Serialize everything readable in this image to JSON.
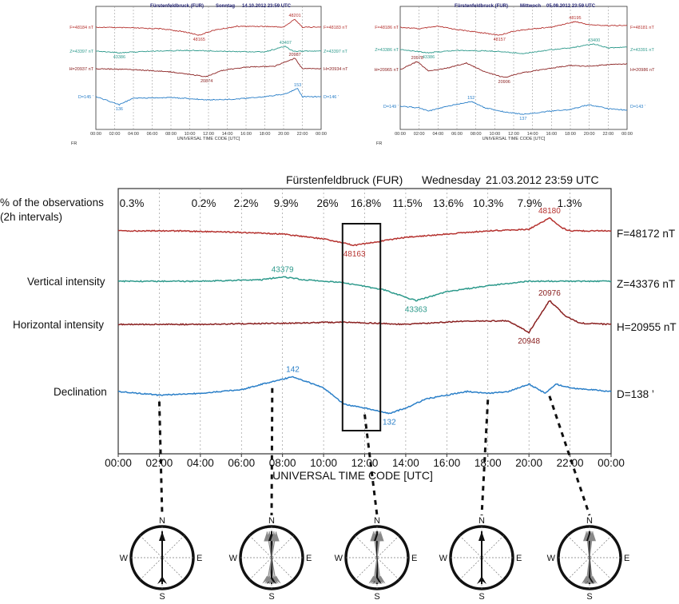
{
  "colors": {
    "F": "#b5322f",
    "Z": "#2e9a8c",
    "H": "#8a2121",
    "D": "#2a7fc8",
    "grid": "#8a8a8a",
    "axis": "#333333"
  },
  "chart_data": [
    {
      "type": "line",
      "title": "Fürstenfeldbruck (FUR)",
      "day": "Sonntag",
      "datetime": "14.10.2012  23:59 UTC",
      "xlabel": "UNIVERSAL TIME CODE [UTC]",
      "footer": "FR",
      "x_ticks": [
        "00:00",
        "02:00",
        "04:00",
        "06:00",
        "08:00",
        "10:00",
        "12:00",
        "14:00",
        "16:00",
        "18:00",
        "20:00",
        "22:00",
        "00:00"
      ],
      "series": [
        {
          "key": "F",
          "left_label": "F=48184 nT",
          "right_label": "F=48183 nT",
          "annotations": [
            {
              "text": "48201",
              "x": 21.2
            },
            {
              "text": "48165",
              "x": 11.0
            }
          ]
        },
        {
          "key": "Z",
          "left_label": "Z=43397 nT",
          "right_label": "Z=43397 nT",
          "annotations": [
            {
              "text": "43386",
              "x": 2.5
            },
            {
              "text": "43407",
              "x": 20.2
            }
          ]
        },
        {
          "key": "H",
          "left_label": "H=20937 nT",
          "right_label": "H=20934 nT",
          "annotations": [
            {
              "text": "20987",
              "x": 21.2
            },
            {
              "text": "20874",
              "x": 11.8
            }
          ]
        },
        {
          "key": "D",
          "left_label": "D=145 ’",
          "right_label": "D=146 ’",
          "annotations": [
            {
              "text": "153",
              "x": 21.5
            },
            {
              "text": "136",
              "x": 2.5
            }
          ]
        }
      ],
      "profiles": {
        "F": [
          [
            0,
            0
          ],
          [
            4,
            0.1
          ],
          [
            7,
            0.2
          ],
          [
            9.5,
            0.6
          ],
          [
            11,
            1
          ],
          [
            12.5,
            0.4
          ],
          [
            15,
            -0.1
          ],
          [
            18,
            -0.1
          ],
          [
            20,
            0
          ],
          [
            21.2,
            -1
          ],
          [
            22,
            0
          ],
          [
            24,
            0
          ]
        ],
        "Z": [
          [
            0,
            0
          ],
          [
            2.5,
            0.2
          ],
          [
            6,
            0
          ],
          [
            10,
            -0.1
          ],
          [
            13,
            0
          ],
          [
            18,
            0.1
          ],
          [
            20.2,
            -0.6
          ],
          [
            21,
            0
          ],
          [
            24,
            0
          ]
        ],
        "H": [
          [
            0,
            0
          ],
          [
            4,
            0.1
          ],
          [
            8,
            0.4
          ],
          [
            11.8,
            1
          ],
          [
            13.5,
            0.2
          ],
          [
            16,
            -0.2
          ],
          [
            19,
            -0.3
          ],
          [
            21.2,
            -1.3
          ],
          [
            22,
            0
          ],
          [
            24,
            0
          ]
        ],
        "D": [
          [
            0,
            0
          ],
          [
            1,
            0.4
          ],
          [
            2.5,
            1
          ],
          [
            4,
            0.2
          ],
          [
            8,
            0.1
          ],
          [
            12,
            0.4
          ],
          [
            15,
            0.3
          ],
          [
            18,
            0
          ],
          [
            20,
            -0.3
          ],
          [
            21.5,
            -1
          ],
          [
            22,
            0
          ],
          [
            24,
            0
          ]
        ]
      }
    },
    {
      "type": "line",
      "title": "Fürstenfeldbruck  (FUR)",
      "day": "Mittwoch",
      "datetime": "05.09.2012  23:59 UTC",
      "xlabel": "UNIVERSAL TIME CODE [UTC]",
      "footer": "FR",
      "x_ticks": [
        "00:00",
        "02:00",
        "04:00",
        "06:00",
        "08:00",
        "10:00",
        "12:00",
        "14:00",
        "16:00",
        "18:00",
        "20:00",
        "22:00",
        "00:00"
      ],
      "series": [
        {
          "key": "F",
          "left_label": "F=48186 nT",
          "right_label": "F=48181 nT",
          "annotations": [
            {
              "text": "48195",
              "x": 18.5
            },
            {
              "text": "48157",
              "x": 10.5
            }
          ]
        },
        {
          "key": "Z",
          "left_label": "Z=43386 nT",
          "right_label": "Z=43391 nT",
          "annotations": [
            {
              "text": "43386",
              "x": 3.0
            },
            {
              "text": "43400",
              "x": 20.5
            }
          ]
        },
        {
          "key": "H",
          "left_label": "H=20965 nT",
          "right_label": "H=20986 nT",
          "annotations": [
            {
              "text": "20978",
              "x": 1.8
            },
            {
              "text": "20906",
              "x": 11.0
            }
          ]
        },
        {
          "key": "D",
          "left_label": "D=149 ’",
          "right_label": "D=143 ’",
          "annotations": [
            {
              "text": "152",
              "x": 7.5
            },
            {
              "text": "137",
              "x": 13.0
            }
          ]
        }
      ],
      "profiles": {
        "F": [
          [
            0,
            0
          ],
          [
            2,
            0.2
          ],
          [
            4,
            -0.1
          ],
          [
            6,
            0.3
          ],
          [
            8,
            0.6
          ],
          [
            10.5,
            1
          ],
          [
            12,
            0.5
          ],
          [
            14,
            0.2
          ],
          [
            16,
            0
          ],
          [
            18.5,
            -0.7
          ],
          [
            20,
            -0.3
          ],
          [
            22,
            -0.2
          ],
          [
            24,
            -0.2
          ]
        ],
        "Z": [
          [
            0,
            0
          ],
          [
            3,
            0.4
          ],
          [
            6,
            0.1
          ],
          [
            10,
            0.2
          ],
          [
            13,
            0.5
          ],
          [
            16,
            0
          ],
          [
            18,
            -0.2
          ],
          [
            20.5,
            -0.7
          ],
          [
            22,
            -0.2
          ],
          [
            24,
            -0.3
          ]
        ],
        "H": [
          [
            0,
            0
          ],
          [
            1.8,
            -1
          ],
          [
            3,
            0.2
          ],
          [
            5,
            -0.2
          ],
          [
            7,
            -0.8
          ],
          [
            9,
            0.3
          ],
          [
            11,
            1
          ],
          [
            13,
            0.4
          ],
          [
            15,
            0
          ],
          [
            18,
            -0.5
          ],
          [
            20,
            -0.4
          ],
          [
            22,
            -0.6
          ],
          [
            24,
            -0.7
          ]
        ],
        "D": [
          [
            0,
            0
          ],
          [
            2,
            0.2
          ],
          [
            3,
            0.6
          ],
          [
            5,
            0
          ],
          [
            7.5,
            -0.6
          ],
          [
            9,
            0.2
          ],
          [
            11,
            0.7
          ],
          [
            13,
            1
          ],
          [
            16,
            0.6
          ],
          [
            18,
            0.4
          ],
          [
            20,
            -0.2
          ],
          [
            22,
            0.3
          ],
          [
            24,
            0.5
          ]
        ]
      }
    },
    {
      "type": "line",
      "title": "Fürstenfeldbruck (FUR)",
      "day": "Wednesday",
      "datetime": "21.03.2012   23:59 UTC",
      "xlabel": "UNIVERSAL TIME CODE [UTC]",
      "x_range": [
        0,
        24
      ],
      "x_ticks": [
        "00:00",
        "02:00",
        "04:00",
        "06:00",
        "08:00",
        "10:00",
        "12:00",
        "14:00",
        "16:00",
        "18:00",
        "20:00",
        "22:00",
        "00:00"
      ],
      "observations_label": [
        "% of the observations",
        "(2h intervals)"
      ],
      "observations": [
        "0.3%",
        "0.2%",
        "2.2%",
        "9.9%",
        "26%",
        "16.8%",
        "11.5%",
        "13.6%",
        "10.3%",
        "7.9%",
        "1.3%"
      ],
      "highlight_window_utc": [
        11,
        13
      ],
      "series": [
        {
          "key": "F",
          "name": "",
          "right_label": "F=48172 nT",
          "min": 48163,
          "max": 48180,
          "annotations": [
            {
              "text": "48180",
              "x": 21.0,
              "pos": "above"
            },
            {
              "text": "48163",
              "x": 11.5,
              "pos": "below"
            }
          ]
        },
        {
          "key": "Z",
          "name": "Vertical intensity",
          "right_label": "Z=43376 nT",
          "min": 43363,
          "max": 43379,
          "annotations": [
            {
              "text": "43379",
              "x": 8.0,
              "pos": "above"
            },
            {
              "text": "43363",
              "x": 14.5,
              "pos": "below"
            }
          ]
        },
        {
          "key": "H",
          "name": "Horizontal intensity",
          "right_label": "H=20955 nT",
          "min": 20948,
          "max": 20976,
          "annotations": [
            {
              "text": "20976",
              "x": 21.0,
              "pos": "above"
            },
            {
              "text": "20948",
              "x": 20.0,
              "pos": "below"
            }
          ]
        },
        {
          "key": "D",
          "name": "Declination",
          "right_label": "D=138 ’",
          "min": 132,
          "max": 142,
          "annotations": [
            {
              "text": "142",
              "x": 8.5,
              "pos": "above"
            },
            {
              "text": "132",
              "x": 13.2,
              "pos": "below"
            }
          ]
        }
      ],
      "profiles": {
        "F": [
          [
            0,
            48172
          ],
          [
            3,
            48172
          ],
          [
            6,
            48171
          ],
          [
            8,
            48170
          ],
          [
            10,
            48167
          ],
          [
            11.5,
            48163
          ],
          [
            12.5,
            48165
          ],
          [
            14,
            48168
          ],
          [
            16,
            48170
          ],
          [
            18,
            48172
          ],
          [
            20,
            48173
          ],
          [
            21,
            48180
          ],
          [
            21.6,
            48174
          ],
          [
            22,
            48172
          ],
          [
            24,
            48172
          ]
        ],
        "Z": [
          [
            0,
            43376
          ],
          [
            4,
            43376
          ],
          [
            7,
            43377
          ],
          [
            8,
            43379
          ],
          [
            9,
            43377
          ],
          [
            11,
            43375
          ],
          [
            13,
            43370
          ],
          [
            14.5,
            43363
          ],
          [
            16,
            43369
          ],
          [
            18,
            43373
          ],
          [
            20,
            43376
          ],
          [
            22,
            43376
          ],
          [
            24,
            43376
          ]
        ],
        "H": [
          [
            0,
            20955
          ],
          [
            4,
            20955
          ],
          [
            8,
            20956
          ],
          [
            11,
            20957
          ],
          [
            14,
            20955
          ],
          [
            17,
            20958
          ],
          [
            19,
            20958
          ],
          [
            20,
            20948
          ],
          [
            20.5,
            20962
          ],
          [
            21,
            20976
          ],
          [
            21.8,
            20962
          ],
          [
            22.5,
            20956
          ],
          [
            24,
            20955
          ]
        ],
        "D": [
          [
            0,
            138
          ],
          [
            2,
            137
          ],
          [
            4,
            137.5
          ],
          [
            6,
            138.5
          ],
          [
            7,
            140
          ],
          [
            8.5,
            142
          ],
          [
            10,
            139
          ],
          [
            11,
            134.5
          ],
          [
            12,
            133.5
          ],
          [
            13.2,
            132
          ],
          [
            14,
            133.5
          ],
          [
            15,
            136
          ],
          [
            17,
            138
          ],
          [
            18,
            137.5
          ],
          [
            19,
            138
          ],
          [
            20,
            140
          ],
          [
            20.8,
            137.5
          ],
          [
            21.3,
            140
          ],
          [
            22,
            139
          ],
          [
            24,
            138
          ]
        ]
      }
    }
  ],
  "compasses": [
    {
      "label": "N",
      "direction_labels": {
        "N": "N",
        "S": "S",
        "E": "E",
        "W": "W"
      },
      "time_utc": 2,
      "spread_deg": 0
    },
    {
      "label": "N",
      "direction_labels": {
        "N": "N",
        "S": "S",
        "E": "E",
        "W": "W"
      },
      "time_utc": 7.5,
      "spread_deg": 10
    },
    {
      "label": "N",
      "direction_labels": {
        "N": "N",
        "S": "S",
        "E": "E",
        "W": "W"
      },
      "time_utc": 12,
      "spread_deg": 8
    },
    {
      "label": "N",
      "direction_labels": {
        "N": "N",
        "S": "S",
        "E": "E",
        "W": "W"
      },
      "time_utc": 18,
      "spread_deg": 0
    },
    {
      "label": "N",
      "direction_labels": {
        "N": "N",
        "S": "S",
        "E": "E",
        "W": "W"
      },
      "time_utc": 21,
      "spread_deg": 7
    }
  ]
}
